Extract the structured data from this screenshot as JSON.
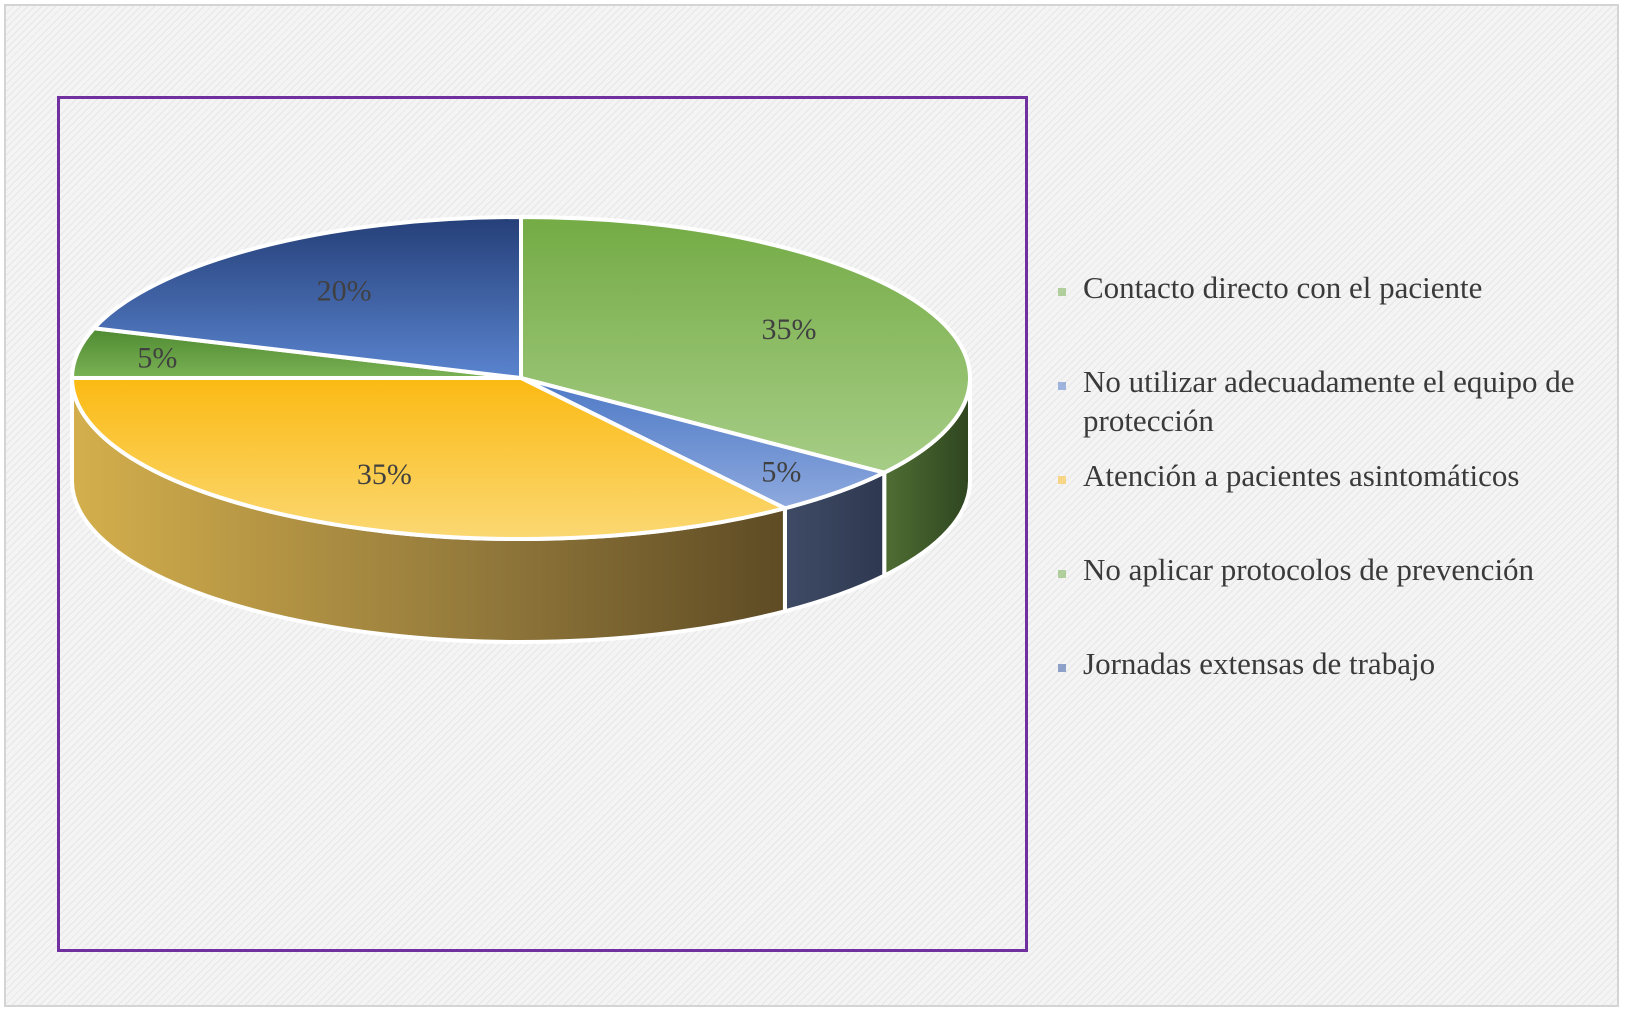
{
  "chart_data": {
    "type": "pie",
    "style": "3d-exploded-pie",
    "slices": [
      {
        "label": "Contacto directo con el paciente",
        "value": 35,
        "data_label": "35%",
        "color": "#8bbc5a",
        "side_color": "#3f5a2a"
      },
      {
        "label": "No utilizar adecuadamente el equipo de protección",
        "value": 5,
        "data_label": "5%",
        "color": "#6f92d2",
        "side_color": "#37425a"
      },
      {
        "label": "Atención a pacientes asintomáticos",
        "value": 35,
        "data_label": "35%",
        "color": "#fcc93a",
        "side_color": "#a8893c"
      },
      {
        "label": "No aplicar protocolos de prevención",
        "value": 5,
        "data_label": "5%",
        "color": "#7bb257",
        "side_color": "#3f5a2a"
      },
      {
        "label": "Jornadas extensas de trabajo",
        "value": 20,
        "data_label": "20%",
        "color": "#3c5fa6",
        "side_color": "#2a3a5e"
      }
    ],
    "legend_position": "right",
    "border_color": "#7030a0"
  }
}
